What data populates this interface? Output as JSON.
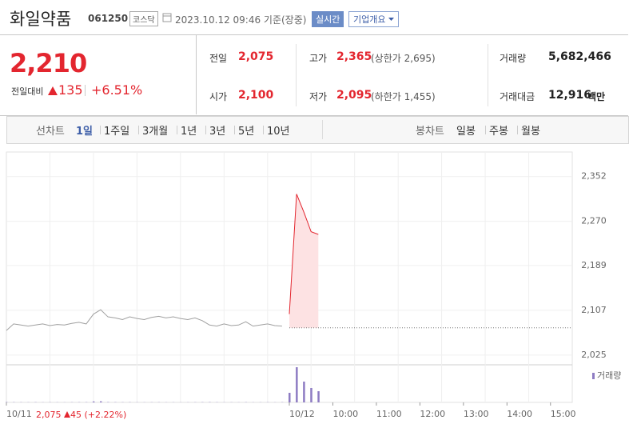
{
  "header": {
    "name": "화일약품",
    "code": "061250",
    "market": "코스닥",
    "time": "2023.10.12 09:46 기준(장중)",
    "realtime": "실시간",
    "company": "기업개요"
  },
  "summary": {
    "price": "2,210",
    "change_label": "전일대비",
    "change": "135",
    "rate": "+6.51%",
    "stats": [
      {
        "label": "전일",
        "value": "2,075"
      },
      {
        "label": "고가",
        "value": "2,365",
        "note": "(상한가 2,695)"
      },
      {
        "label": "거래량",
        "value": "5,682,466"
      },
      {
        "label": "시가",
        "value": "2,100"
      },
      {
        "label": "저가",
        "value": "2,095",
        "note": "(하한가 1,455)"
      },
      {
        "label": "거래대금",
        "value": "12,916",
        "unit": "백만"
      }
    ]
  },
  "tabs": {
    "line_label": "선차트",
    "line": [
      "1일",
      "1주일",
      "3개월",
      "1년",
      "3년",
      "5년",
      "10년"
    ],
    "candle_label": "봉차트",
    "candle": [
      "일봉",
      "주봉",
      "월봉"
    ]
  },
  "readout": {
    "price": "2,075",
    "change": "45",
    "rate": "(+2.22%)"
  },
  "chart_data": {
    "type": "line",
    "categories": [
      "10/11",
      null,
      null,
      null,
      null,
      null,
      null,
      null,
      null,
      null,
      null,
      null,
      null,
      null,
      null,
      null,
      null,
      null,
      null,
      null,
      null,
      null,
      null,
      null,
      null,
      null,
      null,
      null,
      null,
      null,
      null,
      null,
      null,
      null,
      null,
      null,
      null,
      null,
      null,
      "10/12",
      null,
      null,
      null,
      null,
      null,
      "10:00",
      null,
      null,
      null,
      null,
      null,
      "11:00",
      null,
      null,
      null,
      null,
      null,
      "12:00",
      null,
      null,
      null,
      null,
      null,
      "13:00",
      null,
      null,
      null,
      null,
      null,
      "14:00",
      null,
      null,
      null,
      null,
      null,
      "15:00",
      null,
      null
    ],
    "series": [
      {
        "color": "#a0a0a0",
        "values": [
          2070,
          2082,
          2080,
          2078,
          2080,
          2082,
          2079,
          2081,
          2080,
          2083,
          2085,
          2082,
          2100,
          2108,
          2095,
          2093,
          2090,
          2095,
          2092,
          2090,
          2094,
          2096,
          2093,
          2095,
          2092,
          2090,
          2093,
          2088,
          2080,
          2078,
          2082,
          2079,
          2080,
          2086,
          2078,
          2080,
          2082,
          2079,
          2078,
          null,
          null,
          null,
          null,
          null,
          null,
          null,
          null,
          null,
          null,
          null,
          null,
          null,
          null,
          null,
          null,
          null,
          null,
          null,
          null,
          null,
          null,
          null,
          null,
          null,
          null,
          null,
          null,
          null,
          null,
          null,
          null,
          null,
          null,
          null,
          null,
          null,
          null,
          null
        ]
      },
      {
        "color": "#e3262f",
        "fill": "#fde2e3",
        "values": [
          null,
          null,
          null,
          null,
          null,
          null,
          null,
          null,
          null,
          null,
          null,
          null,
          null,
          null,
          null,
          null,
          null,
          null,
          null,
          null,
          null,
          null,
          null,
          null,
          null,
          null,
          null,
          null,
          null,
          null,
          null,
          null,
          null,
          null,
          null,
          null,
          null,
          null,
          null,
          2100,
          2320,
          2287,
          2251,
          2246,
          null,
          null,
          null,
          null,
          null,
          null,
          null,
          null,
          null,
          null,
          null,
          null,
          null,
          null,
          null,
          null,
          null,
          null,
          null,
          null,
          null,
          null,
          null,
          null,
          null,
          null,
          null,
          null,
          null,
          null,
          null,
          null,
          null,
          null
        ]
      }
    ],
    "reference": 2075,
    "volume": {
      "name": "거래량",
      "color": "#8e7cc3",
      "values": [
        20000,
        15000,
        12000,
        10000,
        14000,
        9000,
        11000,
        10000,
        8000,
        12000,
        13000,
        15000,
        60000,
        70000,
        20000,
        15000,
        12000,
        14000,
        10000,
        9000,
        11000,
        12000,
        9000,
        10000,
        8000,
        9000,
        11000,
        15000,
        18000,
        12000,
        9000,
        10000,
        8000,
        14000,
        9000,
        10000,
        12000,
        9000,
        15000,
        600000,
        2200000,
        1300000,
        900000,
        700000,
        null,
        null,
        null,
        null,
        null,
        null,
        null,
        null,
        null,
        null,
        null,
        null,
        null,
        null,
        null,
        null,
        null,
        null,
        null,
        null,
        null,
        null,
        null,
        null,
        null,
        null,
        null,
        null,
        null,
        null,
        null,
        null,
        null,
        null
      ]
    },
    "ylim": [
      2013,
      2397
    ],
    "yticks": [
      {
        "value": 2352,
        "label": "2,352"
      },
      {
        "value": 2270,
        "label": "2,270"
      },
      {
        "value": 2189,
        "label": "2,189"
      },
      {
        "value": 2107,
        "label": "2,107"
      },
      {
        "value": 2025,
        "label": "2,025"
      }
    ],
    "grid": true
  }
}
